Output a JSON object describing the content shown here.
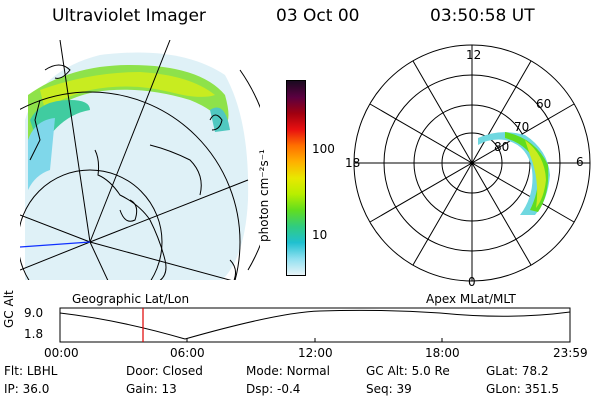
{
  "header": {
    "instrument": "Ultraviolet Imager",
    "date": "03 Oct 00",
    "time": "03:50:58 UT"
  },
  "geo_panel": {
    "caption": "Geographic Lat/Lon"
  },
  "colorbar": {
    "unit_label": "photon cm⁻²s⁻¹",
    "ticks": [
      "100",
      "10"
    ],
    "colors": [
      "#1a0a20",
      "#5a0040",
      "#a00010",
      "#e81010",
      "#ff7000",
      "#ffb000",
      "#e8e800",
      "#b8ee00",
      "#60dd20",
      "#30cc80",
      "#20c0d0",
      "#90e0f0",
      "#e8f4f8"
    ]
  },
  "polar_panel": {
    "caption": "Apex MLat/MLT",
    "mlt_labels": {
      "top": "12",
      "right": "6",
      "bottom": "0",
      "left": "18"
    },
    "lat_labels": [
      "60",
      "70",
      "80"
    ]
  },
  "altitude_plot": {
    "ylabel": "GC Alt",
    "yticks": [
      "9.0",
      "1.8"
    ],
    "xticks": [
      "00:00",
      "06:00",
      "12:00",
      "18:00",
      "23:59"
    ],
    "marker_color": "#e00000"
  },
  "footer": {
    "row1": [
      {
        "label": "Flt:",
        "value": "LBHL"
      },
      {
        "label": "Door:",
        "value": "Closed"
      },
      {
        "label": "Mode:",
        "value": "Normal"
      },
      {
        "label": "GC Alt:",
        "value": "5.0 Re"
      },
      {
        "label": "GLat:",
        "value": "78.2"
      }
    ],
    "row2": [
      {
        "label": "IP:",
        "value": "36.0"
      },
      {
        "label": "Gain:",
        "value": "13"
      },
      {
        "label": "Dsp:",
        "value": "-0.4"
      },
      {
        "label": "Seq:",
        "value": "39"
      },
      {
        "label": "GLon:",
        "value": "351.5"
      }
    ]
  }
}
